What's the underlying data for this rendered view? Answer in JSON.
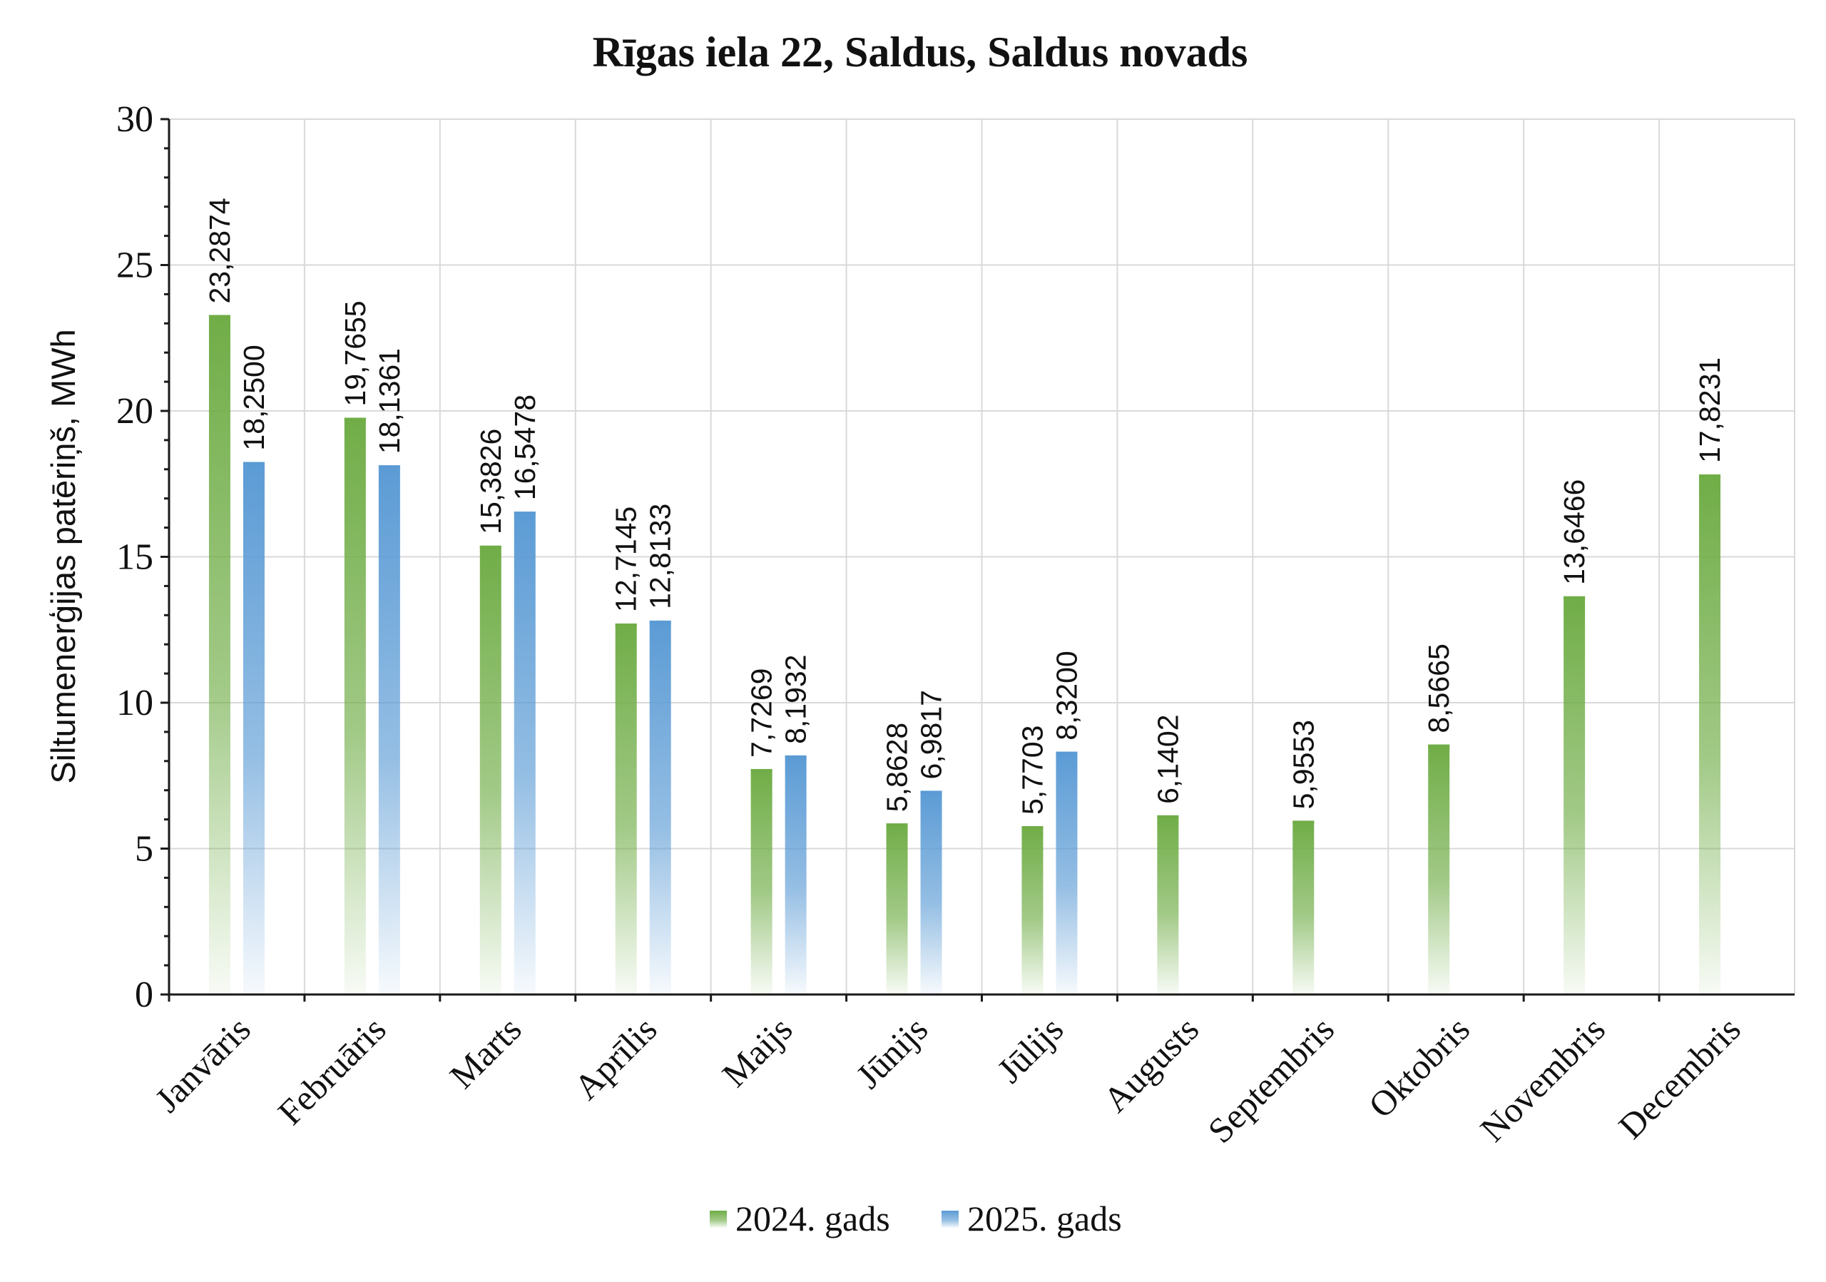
{
  "chart_data": {
    "type": "bar",
    "title": "Rīgas iela 22, Saldus, Saldus novads",
    "xlabel": "",
    "ylabel": "Siltumenerģijas patēriņš, MWh",
    "ylim": [
      0,
      30
    ],
    "yticks": [
      0,
      5,
      10,
      15,
      20,
      25,
      30
    ],
    "grid": true,
    "legend_position": "bottom",
    "categories": [
      "Janvāris",
      "Februāris",
      "Marts",
      "Aprīlis",
      "Maijs",
      "Jūnijs",
      "Jūlijs",
      "Augusts",
      "Septembris",
      "Oktobris",
      "Novembris",
      "Decembris"
    ],
    "series": [
      {
        "name": "2024. gads",
        "color": "#70ad47",
        "values": [
          23.2874,
          19.7655,
          15.3826,
          12.7145,
          7.7269,
          5.8628,
          5.7703,
          6.1402,
          5.9553,
          8.5665,
          13.6466,
          17.8231
        ],
        "labels": [
          "23,2874",
          "19,7655",
          "15,3826",
          "12,7145",
          "7,7269",
          "5,8628",
          "5,7703",
          "6,1402",
          "5,9553",
          "8,5665",
          "13,6466",
          "17,8231"
        ]
      },
      {
        "name": "2025. gads",
        "color": "#5b9bd5",
        "values": [
          18.25,
          18.1361,
          16.5478,
          12.8133,
          8.1932,
          6.9817,
          8.32,
          null,
          null,
          null,
          null,
          null
        ],
        "labels": [
          "18,2500",
          "18,1361",
          "16,5478",
          "12,8133",
          "8,1932",
          "6,9817",
          "8,3200",
          null,
          null,
          null,
          null,
          null
        ]
      }
    ]
  }
}
